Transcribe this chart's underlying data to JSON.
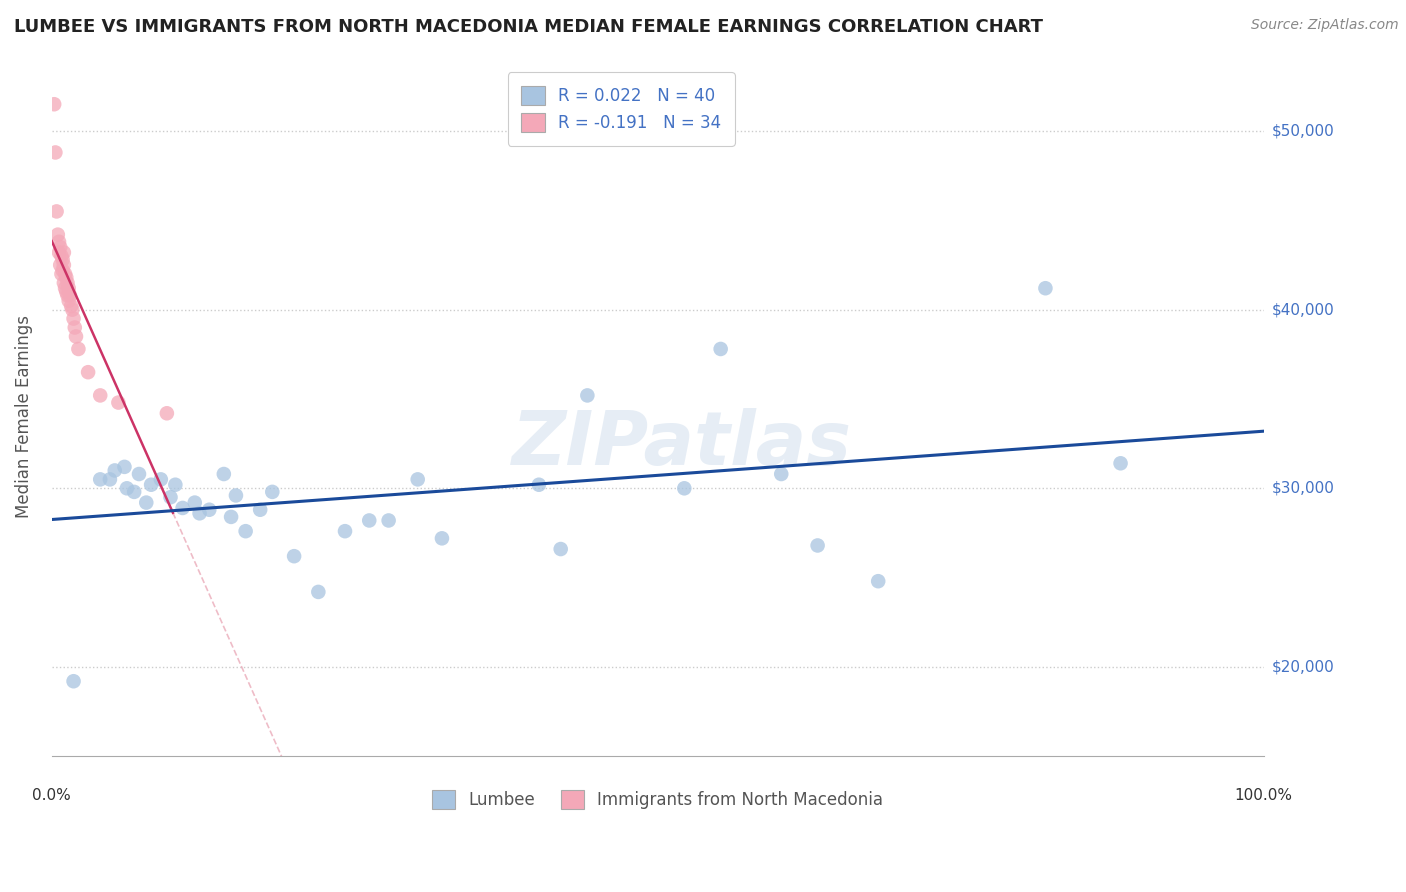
{
  "title": "LUMBEE VS IMMIGRANTS FROM NORTH MACEDONIA MEDIAN FEMALE EARNINGS CORRELATION CHART",
  "source": "Source: ZipAtlas.com",
  "ylabel": "Median Female Earnings",
  "xlim": [
    0,
    1.0
  ],
  "ylim": [
    15000,
    53000
  ],
  "yticks": [
    20000,
    30000,
    40000,
    50000
  ],
  "ytick_labels": [
    "$20,000",
    "$30,000",
    "$40,000",
    "$50,000"
  ],
  "watermark": "ZIPatlas",
  "lumbee_R": 0.022,
  "lumbee_N": 40,
  "macedonia_R": -0.191,
  "macedonia_N": 34,
  "lumbee_color": "#a8c4e0",
  "lumbee_line_color": "#1a4a9a",
  "macedonia_color": "#f4a8b8",
  "macedonia_line_color": "#cc3366",
  "macedonia_line_dash_color": "#e8a0b0",
  "background_color": "#ffffff",
  "grid_color": "#cccccc",
  "lumbee_x": [
    0.018,
    0.04,
    0.048,
    0.052,
    0.06,
    0.062,
    0.068,
    0.072,
    0.078,
    0.082,
    0.09,
    0.098,
    0.102,
    0.108,
    0.118,
    0.122,
    0.13,
    0.142,
    0.148,
    0.152,
    0.16,
    0.172,
    0.182,
    0.2,
    0.22,
    0.242,
    0.262,
    0.278,
    0.302,
    0.322,
    0.402,
    0.42,
    0.442,
    0.522,
    0.552,
    0.602,
    0.632,
    0.682,
    0.82,
    0.882
  ],
  "lumbee_y": [
    19200,
    30500,
    30500,
    31000,
    31200,
    30000,
    29800,
    30800,
    29200,
    30200,
    30500,
    29500,
    30200,
    28900,
    29200,
    28600,
    28800,
    30800,
    28400,
    29600,
    27600,
    28800,
    29800,
    26200,
    24200,
    27600,
    28200,
    28200,
    30500,
    27200,
    30200,
    26600,
    35200,
    30000,
    37800,
    30800,
    26800,
    24800,
    41200,
    31400
  ],
  "macedonia_x": [
    0.002,
    0.003,
    0.004,
    0.005,
    0.006,
    0.006,
    0.007,
    0.007,
    0.008,
    0.008,
    0.009,
    0.009,
    0.01,
    0.01,
    0.01,
    0.011,
    0.011,
    0.012,
    0.012,
    0.013,
    0.013,
    0.014,
    0.014,
    0.015,
    0.016,
    0.017,
    0.018,
    0.019,
    0.02,
    0.022,
    0.03,
    0.04,
    0.055,
    0.095
  ],
  "macedonia_y": [
    51500,
    48800,
    45500,
    44200,
    43800,
    43200,
    43500,
    42500,
    43000,
    42000,
    42800,
    42200,
    43200,
    42500,
    41500,
    42000,
    41200,
    41800,
    41000,
    41500,
    40800,
    41200,
    40500,
    40800,
    40200,
    40000,
    39500,
    39000,
    38500,
    37800,
    36500,
    35200,
    34800,
    34200
  ]
}
